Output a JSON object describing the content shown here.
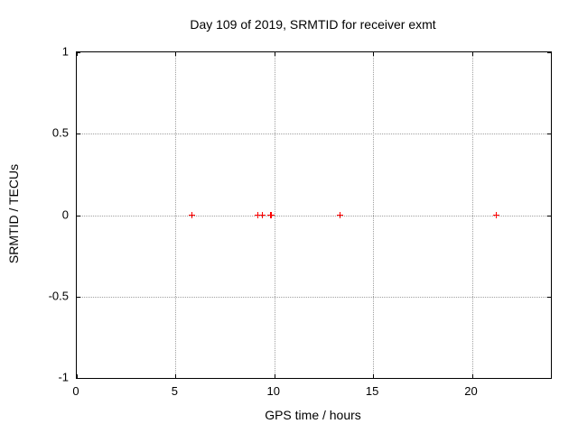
{
  "chart_data": {
    "type": "scatter",
    "title": "Day 109 of 2019, SRMTID for receiver exmt",
    "xlabel": "GPS time / hours",
    "ylabel": "SRMTID / TECUs",
    "xlim": [
      0,
      24
    ],
    "ylim": [
      -1,
      1
    ],
    "xticks": [
      0,
      5,
      10,
      15,
      20
    ],
    "yticks": [
      1,
      0.5,
      0,
      -0.5,
      -1
    ],
    "grid": true,
    "legend_position": "none",
    "marker": "plus",
    "marker_color": "#ff0000",
    "grid_color": "#a0a0a0",
    "series": [
      {
        "name": "SRMTID",
        "x": [
          5.85,
          9.2,
          9.4,
          9.83,
          9.88,
          13.35,
          21.25
        ],
        "y": [
          0,
          0,
          0,
          0,
          0,
          0,
          0
        ]
      }
    ]
  }
}
